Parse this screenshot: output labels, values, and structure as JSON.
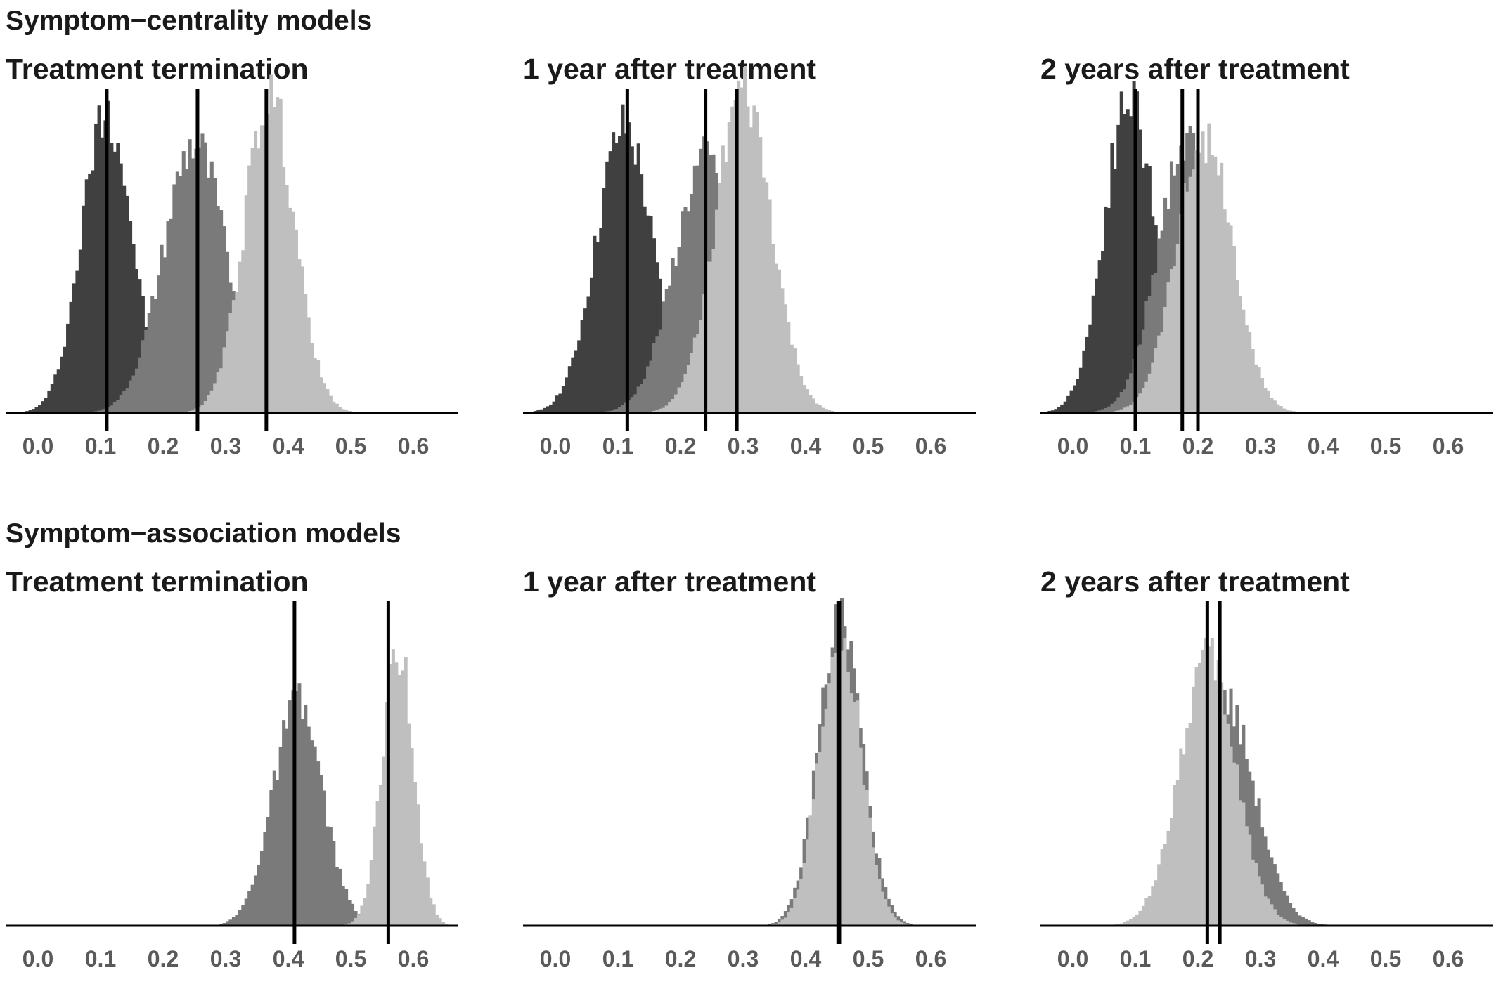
{
  "sections": [
    {
      "title": "Symptom−centrality models"
    },
    {
      "title": "Symptom−association models"
    }
  ],
  "chart_data": [
    {
      "type": "histogram",
      "section": "Symptom−centrality models",
      "title": "Treatment termination",
      "xlim": [
        0.0,
        0.68
      ],
      "x_ticks": [
        "0.0",
        "0.1",
        "0.2",
        "0.3",
        "0.4",
        "0.5",
        "0.6"
      ],
      "y_axis": "none",
      "distributions": [
        {
          "color": "#404040",
          "mean": 0.11,
          "sd": 0.04,
          "peak": 0.96
        },
        {
          "color": "#7a7a7a",
          "mean": 0.25,
          "sd": 0.05,
          "peak": 0.85
        },
        {
          "color": "#bfbfbf",
          "mean": 0.37,
          "sd": 0.04,
          "peak": 1.0
        }
      ],
      "vlines": [
        0.11,
        0.255,
        0.365
      ]
    },
    {
      "type": "histogram",
      "section": "Symptom−centrality models",
      "title": "1 year after treatment",
      "xlim": [
        0.0,
        0.68
      ],
      "x_ticks": [
        "0.0",
        "0.1",
        "0.2",
        "0.3",
        "0.4",
        "0.5",
        "0.6"
      ],
      "y_axis": "none",
      "distributions": [
        {
          "color": "#404040",
          "mean": 0.11,
          "sd": 0.045,
          "peak": 0.9
        },
        {
          "color": "#7a7a7a",
          "mean": 0.24,
          "sd": 0.05,
          "peak": 0.8
        },
        {
          "color": "#bfbfbf",
          "mean": 0.3,
          "sd": 0.045,
          "peak": 1.0
        }
      ],
      "vlines": [
        0.115,
        0.24,
        0.29
      ]
    },
    {
      "type": "histogram",
      "section": "Symptom−centrality models",
      "title": "2 years after treatment",
      "xlim": [
        0.0,
        0.68
      ],
      "x_ticks": [
        "0.0",
        "0.1",
        "0.2",
        "0.3",
        "0.4",
        "0.5",
        "0.6"
      ],
      "y_axis": "none",
      "distributions": [
        {
          "color": "#404040",
          "mean": 0.09,
          "sd": 0.04,
          "peak": 1.0
        },
        {
          "color": "#7a7a7a",
          "mean": 0.18,
          "sd": 0.045,
          "peak": 0.85
        },
        {
          "color": "#bfbfbf",
          "mean": 0.21,
          "sd": 0.045,
          "peak": 0.88
        }
      ],
      "vlines": [
        0.1,
        0.175,
        0.2
      ]
    },
    {
      "type": "histogram",
      "section": "Symptom−association models",
      "title": "Treatment termination",
      "xlim": [
        0.0,
        0.68
      ],
      "x_ticks": [
        "0.0",
        "0.1",
        "0.2",
        "0.3",
        "0.4",
        "0.5",
        "0.6"
      ],
      "y_axis": "none",
      "distributions": [
        {
          "color": "#7a7a7a",
          "mean": 0.415,
          "sd": 0.04,
          "peak": 0.7
        },
        {
          "color": "#bfbfbf",
          "mean": 0.575,
          "sd": 0.025,
          "peak": 0.88
        }
      ],
      "vlines": [
        0.41,
        0.56
      ]
    },
    {
      "type": "histogram",
      "section": "Symptom−association models",
      "title": "1 year after treatment",
      "xlim": [
        0.0,
        0.68
      ],
      "x_ticks": [
        "0.0",
        "0.1",
        "0.2",
        "0.3",
        "0.4",
        "0.5",
        "0.6"
      ],
      "y_axis": "none",
      "distributions": [
        {
          "color": "#7a7a7a",
          "mean": 0.455,
          "sd": 0.035,
          "peak": 0.97
        },
        {
          "color": "#bfbfbf",
          "mean": 0.455,
          "sd": 0.033,
          "peak": 0.94
        }
      ],
      "vlines": [
        0.452,
        0.455
      ]
    },
    {
      "type": "histogram",
      "section": "Symptom−association models",
      "title": "2 years after treatment",
      "xlim": [
        0.0,
        0.68
      ],
      "x_ticks": [
        "0.0",
        "0.1",
        "0.2",
        "0.3",
        "0.4",
        "0.5",
        "0.6"
      ],
      "y_axis": "none",
      "distributions": [
        {
          "color": "#7a7a7a",
          "mean": 0.24,
          "sd": 0.05,
          "peak": 0.72
        },
        {
          "color": "#bfbfbf",
          "mean": 0.215,
          "sd": 0.045,
          "peak": 0.84
        }
      ],
      "vlines": [
        0.215,
        0.235
      ]
    }
  ]
}
